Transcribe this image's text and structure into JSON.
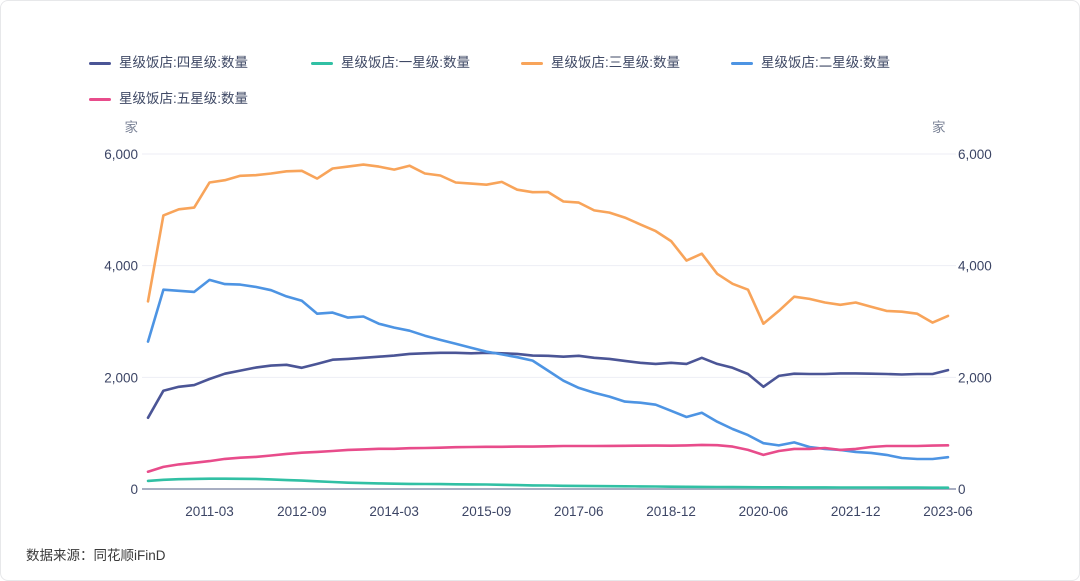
{
  "legend": {
    "items": [
      {
        "label": "星级饭店:四星级:数量",
        "color": "#4b5596"
      },
      {
        "label": "星级饭店:一星级:数量",
        "color": "#31c0a4"
      },
      {
        "label": "星级饭店:三星级:数量",
        "color": "#f8a45a"
      },
      {
        "label": "星级饭店:二星级:数量",
        "color": "#4d94e3"
      },
      {
        "label": "星级饭店:五星级:数量",
        "color": "#e84c8b"
      }
    ]
  },
  "footer": {
    "source_label": "数据来源：同花顺iFinD"
  },
  "chart_data": {
    "type": "line",
    "unit_left": "家",
    "unit_right": "家",
    "ylim": [
      0,
      6000
    ],
    "y_ticks": [
      0,
      2000,
      4000,
      6000
    ],
    "y_tick_labels": [
      "0",
      "2,000",
      "4,000",
      "6,000"
    ],
    "grid": true,
    "legend_position": "top-left",
    "x": [
      "2010-03",
      "2010-06",
      "2010-09",
      "2010-12",
      "2011-03",
      "2011-06",
      "2011-09",
      "2011-12",
      "2012-03",
      "2012-06",
      "2012-09",
      "2012-12",
      "2013-03",
      "2013-06",
      "2013-09",
      "2013-12",
      "2014-03",
      "2014-06",
      "2014-09",
      "2014-12",
      "2015-03",
      "2015-06",
      "2015-09",
      "2015-12",
      "2016-03",
      "2016-06",
      "2016-09",
      "2017-03",
      "2017-06",
      "2017-09",
      "2017-12",
      "2018-03",
      "2018-06",
      "2018-09",
      "2018-12",
      "2019-03",
      "2019-06",
      "2019-09",
      "2019-12",
      "2020-03",
      "2020-06",
      "2020-09",
      "2020-12",
      "2021-03",
      "2021-06",
      "2021-09",
      "2021-12",
      "2022-03",
      "2022-06",
      "2022-09",
      "2022-12",
      "2023-03",
      "2023-06"
    ],
    "x_tick_indices": [
      4,
      10,
      16,
      22,
      28,
      34,
      40,
      46,
      52
    ],
    "x_tick_labels": [
      "2011-03",
      "2012-09",
      "2014-03",
      "2015-09",
      "2017-06",
      "2018-12",
      "2020-06",
      "2021-12",
      "2023-06"
    ],
    "series": [
      {
        "name": "星级饭店:四星级:数量",
        "key": "four-star",
        "color": "#4b5596",
        "values": [
          1275,
          1760,
          1830,
          1860,
          1970,
          2065,
          2120,
          2175,
          2210,
          2225,
          2170,
          2240,
          2315,
          2330,
          2350,
          2370,
          2390,
          2420,
          2430,
          2440,
          2440,
          2430,
          2440,
          2430,
          2420,
          2390,
          2385,
          2370,
          2385,
          2350,
          2330,
          2295,
          2260,
          2240,
          2260,
          2240,
          2350,
          2240,
          2170,
          2060,
          1830,
          2025,
          2065,
          2060,
          2060,
          2070,
          2070,
          2065,
          2060,
          2050,
          2060,
          2060,
          2130
        ]
      },
      {
        "name": "星级饭店:一星级:数量",
        "key": "one-star",
        "color": "#31c0a4",
        "values": [
          145,
          165,
          175,
          180,
          185,
          185,
          183,
          180,
          172,
          160,
          150,
          138,
          125,
          112,
          105,
          100,
          95,
          92,
          90,
          88,
          85,
          82,
          80,
          75,
          70,
          65,
          62,
          58,
          55,
          52,
          50,
          48,
          46,
          44,
          42,
          40,
          38,
          36,
          34,
          32,
          30,
          30,
          29,
          28,
          28,
          27,
          27,
          26,
          26,
          25,
          25,
          24,
          24
        ]
      },
      {
        "name": "星级饭店:三星级:数量",
        "key": "three-star",
        "color": "#f8a45a",
        "values": [
          3360,
          4900,
          5010,
          5040,
          5490,
          5530,
          5610,
          5620,
          5650,
          5690,
          5700,
          5560,
          5740,
          5775,
          5810,
          5775,
          5720,
          5790,
          5650,
          5615,
          5490,
          5470,
          5450,
          5500,
          5360,
          5315,
          5320,
          5150,
          5130,
          4990,
          4950,
          4860,
          4740,
          4620,
          4440,
          4090,
          4215,
          3855,
          3675,
          3570,
          2960,
          3190,
          3445,
          3405,
          3340,
          3300,
          3340,
          3265,
          3190,
          3175,
          3140,
          2980,
          3100
        ]
      },
      {
        "name": "星级饭店:二星级:数量",
        "key": "two-star",
        "color": "#4d94e3",
        "values": [
          2640,
          3570,
          3550,
          3530,
          3745,
          3670,
          3660,
          3620,
          3560,
          3450,
          3370,
          3140,
          3160,
          3070,
          3090,
          2960,
          2890,
          2835,
          2745,
          2670,
          2600,
          2530,
          2460,
          2410,
          2360,
          2300,
          2120,
          1940,
          1810,
          1725,
          1655,
          1565,
          1545,
          1510,
          1400,
          1290,
          1365,
          1205,
          1075,
          965,
          820,
          780,
          835,
          753,
          718,
          700,
          664,
          646,
          610,
          556,
          538,
          538,
          570
        ]
      },
      {
        "name": "星级饭店:五星级:数量",
        "key": "five-star",
        "color": "#e84c8b",
        "values": [
          310,
          395,
          440,
          470,
          500,
          540,
          560,
          575,
          600,
          628,
          650,
          664,
          680,
          700,
          710,
          720,
          720,
          730,
          735,
          740,
          748,
          753,
          755,
          755,
          760,
          760,
          765,
          770,
          770,
          770,
          772,
          773,
          775,
          778,
          775,
          780,
          790,
          785,
          760,
          700,
          610,
          680,
          718,
          718,
          735,
          700,
          718,
          753,
          770,
          771,
          771,
          778,
          783
        ]
      }
    ],
    "colors": {
      "grid": "#edeef4",
      "axis_line": "#a8aec2",
      "tick_text": "#3c4565",
      "unit_text": "#7a8296"
    }
  }
}
